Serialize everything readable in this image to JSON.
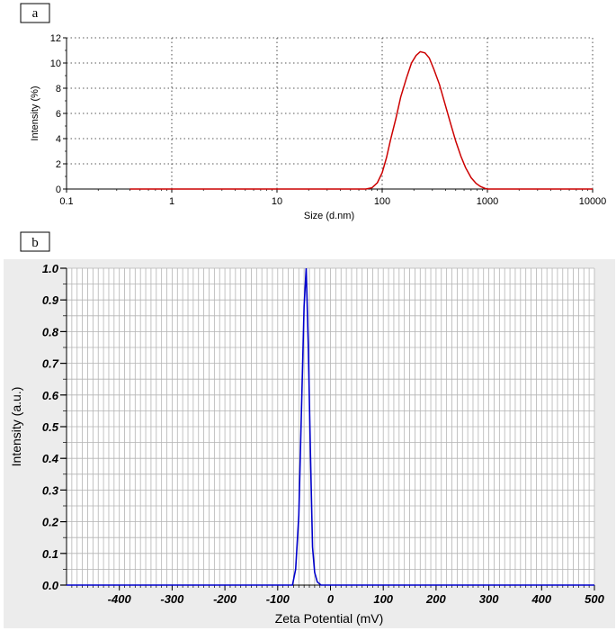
{
  "chart_data": [
    {
      "panel_label": "a",
      "type": "line",
      "xlabel": "Size (d.nm)",
      "ylabel": "Intensity (%)",
      "x_scale": "log",
      "xlim": [
        0.1,
        10000
      ],
      "ylim": [
        0,
        12
      ],
      "x_ticks": [
        "0.1",
        "1",
        "10",
        "100",
        "1000",
        "10000"
      ],
      "y_ticks": [
        "0",
        "2",
        "4",
        "6",
        "8",
        "10",
        "12"
      ],
      "grid": "dotted",
      "series": [
        {
          "color": "#cc0000",
          "x": [
            0.4,
            10,
            70,
            80,
            90,
            100,
            110,
            120,
            135,
            150,
            170,
            190,
            210,
            230,
            255,
            280,
            310,
            350,
            400,
            450,
            500,
            560,
            620,
            700,
            780,
            860,
            950,
            1000,
            1500,
            3000,
            10000
          ],
          "y": [
            0,
            0,
            0,
            0.1,
            0.5,
            1.3,
            2.5,
            3.9,
            5.6,
            7.3,
            8.8,
            10.0,
            10.6,
            10.9,
            10.8,
            10.4,
            9.5,
            8.3,
            6.6,
            5.1,
            3.8,
            2.6,
            1.7,
            0.9,
            0.45,
            0.2,
            0.05,
            0,
            0,
            0,
            0
          ]
        }
      ]
    },
    {
      "panel_label": "b",
      "type": "line",
      "xlabel": "Zeta Potential (mV)",
      "ylabel": "Intensity (a.u.)",
      "xlim": [
        -500,
        500
      ],
      "ylim": [
        0,
        1.0
      ],
      "x_ticks": [
        "-400",
        "-300",
        "-200",
        "-100",
        "0",
        "100",
        "200",
        "300",
        "400",
        "500"
      ],
      "y_ticks": [
        "0.0",
        "0.1",
        "0.2",
        "0.3",
        "0.4",
        "0.5",
        "0.6",
        "0.7",
        "0.8",
        "0.9",
        "1.0"
      ],
      "grid": "on",
      "series": [
        {
          "color": "#0000cc",
          "x": [
            -500,
            -100,
            -72,
            -66,
            -60,
            -55,
            -50,
            -46,
            -42,
            -38,
            -34,
            -30,
            -25,
            -18,
            -10,
            500
          ],
          "y": [
            0,
            0,
            0,
            0.05,
            0.22,
            0.55,
            0.88,
            1.0,
            0.75,
            0.42,
            0.12,
            0.04,
            0.01,
            0,
            0,
            0
          ]
        }
      ]
    }
  ]
}
